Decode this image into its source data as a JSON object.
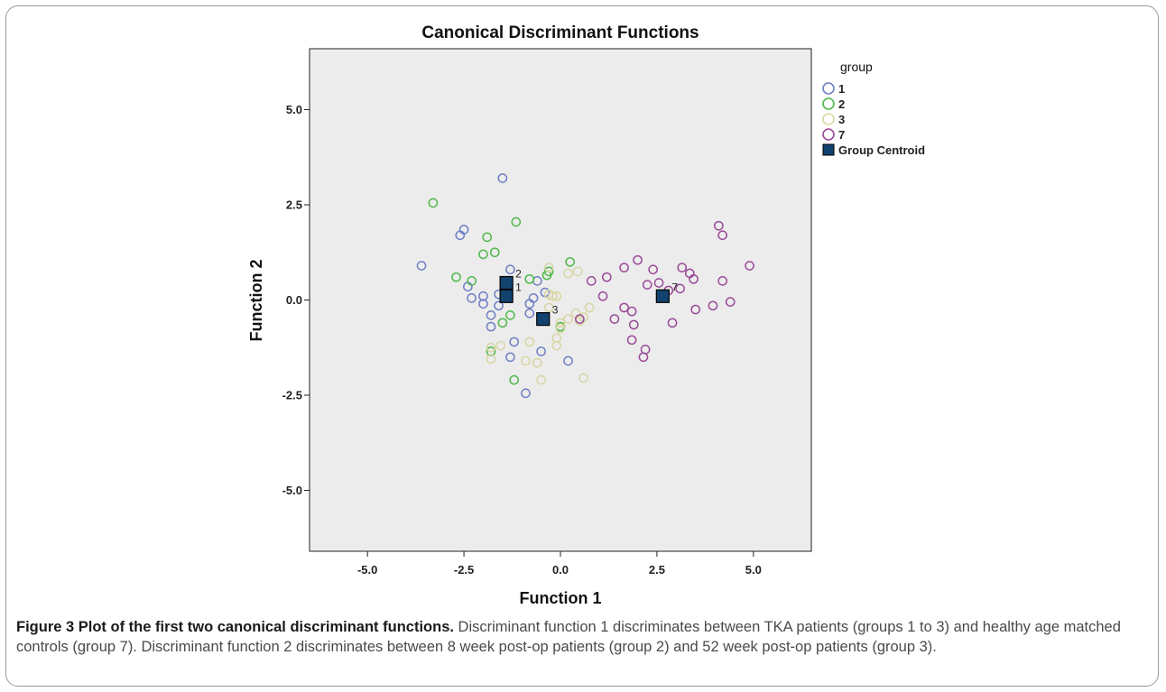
{
  "chart_data": {
    "type": "scatter",
    "title": "Canonical Discriminant Functions",
    "xlabel": "Function 1",
    "ylabel": "Function 2",
    "xlim": [
      -6.5,
      6.5
    ],
    "ylim": [
      -6.6,
      6.6
    ],
    "xticks": [
      "-5.0",
      "-2.5",
      "0.0",
      "2.5",
      "5.0"
    ],
    "yticks": [
      "5.0",
      "2.5",
      "0.0",
      "-2.5",
      "-5.0"
    ],
    "legend_title": "group",
    "legend_position": "right",
    "grid": false,
    "series": [
      {
        "name": "1",
        "color": "#6f7fc4",
        "points": [
          [
            -3.6,
            0.9
          ],
          [
            -2.6,
            1.7
          ],
          [
            -2.5,
            1.85
          ],
          [
            -2.4,
            0.35
          ],
          [
            -2.3,
            0.05
          ],
          [
            -1.5,
            3.2
          ],
          [
            -2.0,
            0.1
          ],
          [
            -2.0,
            -0.1
          ],
          [
            -1.8,
            -0.4
          ],
          [
            -1.8,
            -0.7
          ],
          [
            -1.6,
            0.15
          ],
          [
            -1.6,
            -0.15
          ],
          [
            -1.3,
            0.8
          ],
          [
            -1.2,
            -1.1
          ],
          [
            -1.3,
            -1.5
          ],
          [
            -0.9,
            -2.45
          ],
          [
            -0.8,
            -0.1
          ],
          [
            -0.8,
            -0.35
          ],
          [
            -0.7,
            0.05
          ],
          [
            -0.5,
            -1.35
          ],
          [
            -0.6,
            0.5
          ],
          [
            -0.4,
            0.2
          ],
          [
            0.2,
            -1.6
          ]
        ]
      },
      {
        "name": "2",
        "color": "#4fb848",
        "points": [
          [
            -3.3,
            2.55
          ],
          [
            -2.7,
            0.6
          ],
          [
            -2.3,
            0.5
          ],
          [
            -2.0,
            1.2
          ],
          [
            -1.9,
            1.65
          ],
          [
            -1.7,
            1.25
          ],
          [
            -1.8,
            -1.35
          ],
          [
            -1.5,
            -0.6
          ],
          [
            -1.3,
            -0.4
          ],
          [
            -1.15,
            2.05
          ],
          [
            -1.2,
            -2.1
          ],
          [
            -0.35,
            0.65
          ],
          [
            -0.3,
            0.75
          ],
          [
            0.0,
            -0.7
          ],
          [
            0.25,
            1.0
          ],
          [
            -0.8,
            0.55
          ]
        ]
      },
      {
        "name": "3",
        "color": "#d8d6a4",
        "points": [
          [
            -1.8,
            -1.25
          ],
          [
            -1.8,
            -1.55
          ],
          [
            -1.55,
            -1.2
          ],
          [
            -0.9,
            -1.6
          ],
          [
            -0.8,
            -1.1
          ],
          [
            -0.6,
            -1.65
          ],
          [
            -0.5,
            -2.1
          ],
          [
            -0.3,
            0.85
          ],
          [
            -0.3,
            0.15
          ],
          [
            -0.3,
            -0.2
          ],
          [
            -0.2,
            0.1
          ],
          [
            -0.1,
            -1.0
          ],
          [
            -0.1,
            -1.2
          ],
          [
            0.0,
            -0.6
          ],
          [
            0.2,
            0.7
          ],
          [
            0.2,
            -0.5
          ],
          [
            0.4,
            -0.35
          ],
          [
            0.5,
            -0.55
          ],
          [
            0.6,
            -0.45
          ],
          [
            0.75,
            -0.2
          ],
          [
            0.6,
            -2.05
          ],
          [
            0.45,
            0.75
          ],
          [
            0.0,
            -0.75
          ],
          [
            -0.1,
            0.1
          ]
        ]
      },
      {
        "name": "7",
        "color": "#9a4a98",
        "points": [
          [
            0.8,
            0.5
          ],
          [
            1.1,
            0.1
          ],
          [
            1.2,
            0.6
          ],
          [
            1.4,
            -0.5
          ],
          [
            1.65,
            0.85
          ],
          [
            1.65,
            -0.2
          ],
          [
            1.85,
            -0.3
          ],
          [
            1.85,
            -1.05
          ],
          [
            1.9,
            -0.65
          ],
          [
            2.0,
            1.05
          ],
          [
            2.15,
            -1.5
          ],
          [
            2.2,
            -1.3
          ],
          [
            2.25,
            0.4
          ],
          [
            2.4,
            0.8
          ],
          [
            2.55,
            0.45
          ],
          [
            2.8,
            0.25
          ],
          [
            2.9,
            -0.6
          ],
          [
            3.1,
            0.3
          ],
          [
            3.15,
            0.85
          ],
          [
            3.35,
            0.7
          ],
          [
            3.45,
            0.55
          ],
          [
            3.5,
            -0.25
          ],
          [
            3.95,
            -0.15
          ],
          [
            4.1,
            1.95
          ],
          [
            4.2,
            1.7
          ],
          [
            4.2,
            0.5
          ],
          [
            4.4,
            -0.05
          ],
          [
            4.9,
            0.9
          ],
          [
            0.5,
            -0.5
          ]
        ]
      }
    ],
    "centroids": [
      {
        "group": "1",
        "x": -1.4,
        "y": 0.1
      },
      {
        "group": "2",
        "x": -1.4,
        "y": 0.45
      },
      {
        "group": "3",
        "x": -0.45,
        "y": -0.5
      },
      {
        "group": "7",
        "x": 2.65,
        "y": 0.1
      }
    ],
    "centroid_legend": "Group Centroid",
    "centroid_color": "#12426e"
  },
  "caption": {
    "label": "Figure 3 Plot of the first two canonical discriminant functions.",
    "text": " Discriminant function 1 discriminates between TKA patients (groups 1 to 3) and healthy age matched controls (group 7). Discriminant function 2 discriminates between 8 week post-op patients (group 2) and 52 week post-op patients (group 3)."
  }
}
